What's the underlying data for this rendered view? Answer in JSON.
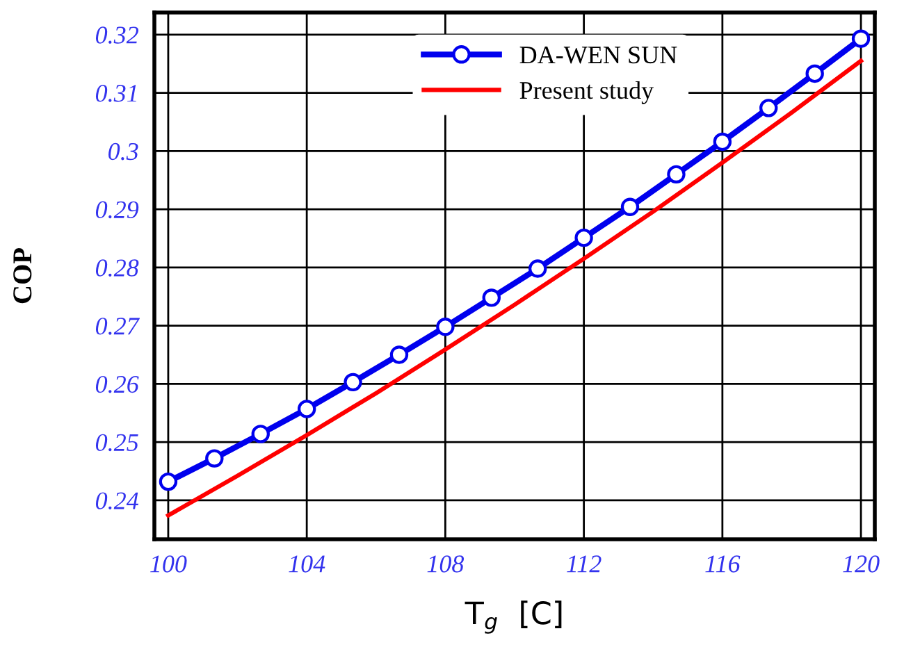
{
  "chart_data": {
    "type": "line",
    "xlabel": "T$_{g}$  [C]",
    "ylabel": "COP",
    "xlim": [
      99.6,
      120.4
    ],
    "ylim": [
      0.2333,
      0.3238
    ],
    "xticks": [
      100,
      104,
      108,
      112,
      116,
      120
    ],
    "yticks": [
      0.24,
      0.25,
      0.26,
      0.27,
      0.28,
      0.29,
      {
        "value": 0.3,
        "label": "0.3"
      },
      0.31,
      0.32
    ],
    "grid": true,
    "legend": "top",
    "line_style": "solid",
    "series": [
      {
        "name": "DA-WEN SUN",
        "color": "#0000ee",
        "marker": "circle",
        "x": [
          100,
          101.333,
          102.667,
          104,
          105.333,
          106.667,
          108,
          109.333,
          110.667,
          112,
          113.333,
          114.667,
          116,
          117.333,
          118.667,
          120
        ],
        "values": [
          0.2432,
          0.2472,
          0.2514,
          0.2557,
          0.2603,
          0.265,
          0.2698,
          0.2748,
          0.2798,
          0.2851,
          0.2904,
          0.296,
          0.3016,
          0.3074,
          0.3133,
          0.3193
        ]
      },
      {
        "name": "Present study",
        "color": "#ff0000",
        "marker": "none",
        "x": [
          100,
          102,
          104,
          106,
          108,
          110,
          112,
          114,
          116,
          118,
          120
        ],
        "values": [
          0.2374,
          0.2442,
          0.2512,
          0.2584,
          0.2659,
          0.2736,
          0.2815,
          0.2896,
          0.298,
          0.3066,
          0.3155
        ]
      }
    ]
  }
}
